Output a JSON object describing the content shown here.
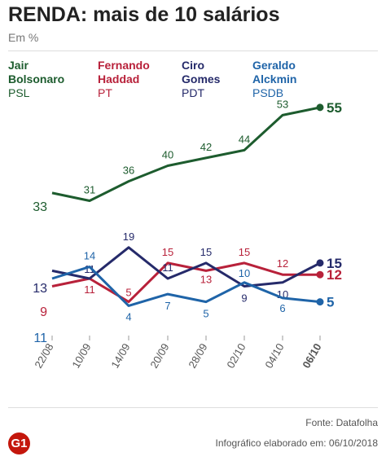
{
  "header": {
    "title": "RENDA: mais de 10 salários",
    "subtitle": "Em %"
  },
  "footer": {
    "source": "Fonte: Datafolha",
    "credit": "Infográfico elaborado em: 06/10/2018",
    "logo": "G1"
  },
  "colors": {
    "bolsonaro": "#1d5c2e",
    "haddad": "#b8213a",
    "ciro": "#252a6a",
    "alckmin": "#1f64a8"
  },
  "chart_data": {
    "type": "line",
    "title": "RENDA: mais de 10 salários",
    "subtitle": "Em %",
    "x": [
      "22/08",
      "10/09",
      "14/09",
      "20/09",
      "28/09",
      "02/10",
      "04/10",
      "06/10"
    ],
    "series": [
      {
        "key": "bolsonaro",
        "name": "Jair Bolsonaro",
        "party": "PSL",
        "values": [
          33,
          31,
          36,
          40,
          42,
          44,
          53,
          55
        ]
      },
      {
        "key": "haddad",
        "name": "Fernando Haddad",
        "party": "PT",
        "values": [
          9,
          11,
          5,
          15,
          13,
          15,
          12,
          12
        ]
      },
      {
        "key": "ciro",
        "name": "Ciro Gomes",
        "party": "PDT",
        "values": [
          13,
          11,
          19,
          11,
          15,
          9,
          10,
          15
        ]
      },
      {
        "key": "alckmin",
        "name": "Geraldo Alckmin",
        "party": "PSDB",
        "values": [
          11,
          14,
          4,
          7,
          5,
          10,
          6,
          5
        ]
      }
    ],
    "legend": [
      {
        "first": "Jair",
        "last": "Bolsonaro",
        "party": "PSL"
      },
      {
        "first": "Fernando",
        "last": "Haddad",
        "party": "PT"
      },
      {
        "first": "Ciro",
        "last": "Gomes",
        "party": "PDT"
      },
      {
        "first": "Geraldo",
        "last": "Alckmin",
        "party": "PSDB"
      }
    ],
    "grid": false,
    "legend_position": "top"
  }
}
